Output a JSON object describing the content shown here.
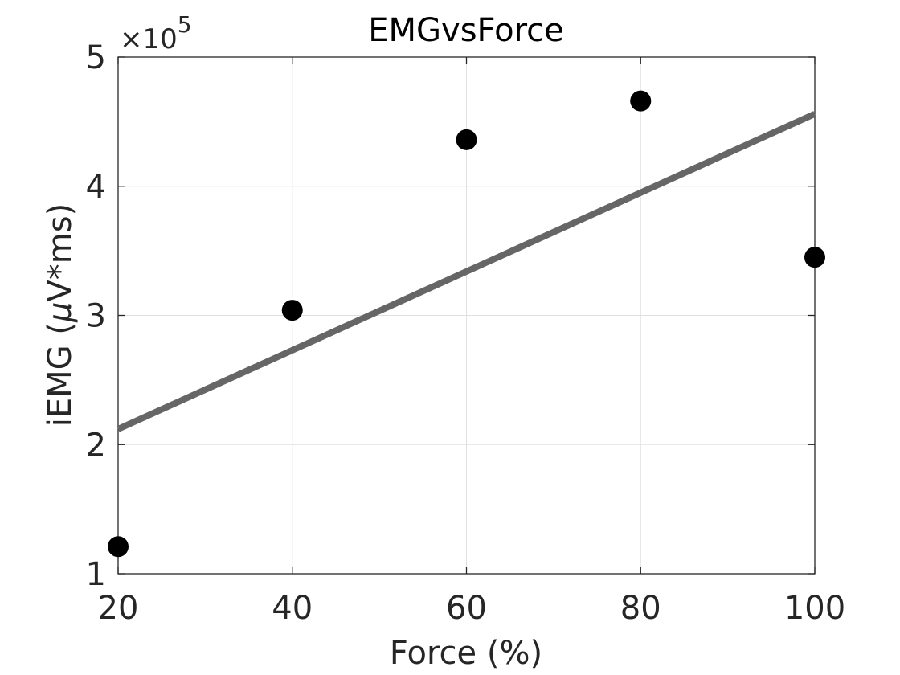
{
  "chart_data": {
    "type": "scatter",
    "title": "EMGvsForce",
    "xlabel": "Force (%)",
    "ylabel_prefix": "iEMG (",
    "ylabel_symbol": "μ",
    "ylabel_suffix": "V*ms)",
    "y_exponent_base": "×10",
    "y_exponent_power": "5",
    "xlim": [
      20,
      100
    ],
    "ylim": [
      1,
      5
    ],
    "xticks": [
      20,
      40,
      60,
      80,
      100
    ],
    "yticks": [
      1,
      2,
      3,
      4,
      5
    ],
    "xtick_labels": [
      "20",
      "40",
      "60",
      "80",
      "100"
    ],
    "ytick_labels": [
      "1",
      "2",
      "3",
      "4",
      "5"
    ],
    "grid": true,
    "series": [
      {
        "kind": "points",
        "color": "#000000",
        "x": [
          20,
          40,
          60,
          80,
          100
        ],
        "y": [
          1.21,
          3.04,
          4.36,
          4.66,
          3.45
        ]
      },
      {
        "kind": "fit-line",
        "color": "#666666",
        "x": [
          20,
          100
        ],
        "y": [
          2.12,
          4.56
        ]
      }
    ]
  }
}
